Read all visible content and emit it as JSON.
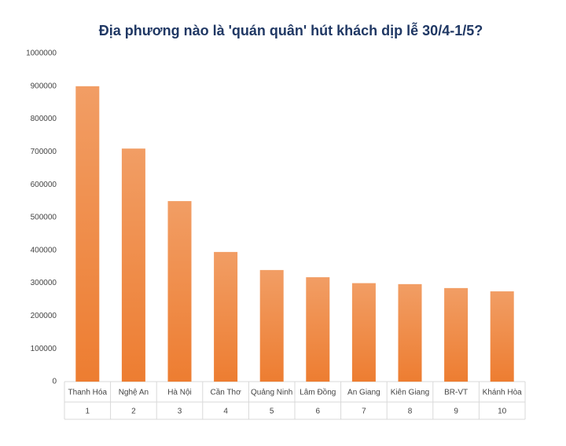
{
  "chart_data": {
    "type": "bar",
    "title": "Địa phương nào là 'quán quân' hút khách dịp lễ 30/4-1/5?",
    "categories": [
      "Thanh Hóa",
      "Nghệ An",
      "Hà Nội",
      "Cần Thơ",
      "Quảng Ninh",
      "Lâm Đồng",
      "An Giang",
      "Kiên Giang",
      "BR-VT",
      "Khánh Hòa"
    ],
    "ranks": [
      "1",
      "2",
      "3",
      "4",
      "5",
      "6",
      "7",
      "8",
      "9",
      "10"
    ],
    "values": [
      900000,
      710000,
      550000,
      395000,
      340000,
      318000,
      300000,
      297000,
      285000,
      275000
    ],
    "color": "#ed7d31",
    "ylim": [
      0,
      1000000
    ],
    "yticks": [
      0,
      100000,
      200000,
      300000,
      400000,
      500000,
      600000,
      700000,
      800000,
      900000,
      1000000
    ],
    "grid": false
  }
}
